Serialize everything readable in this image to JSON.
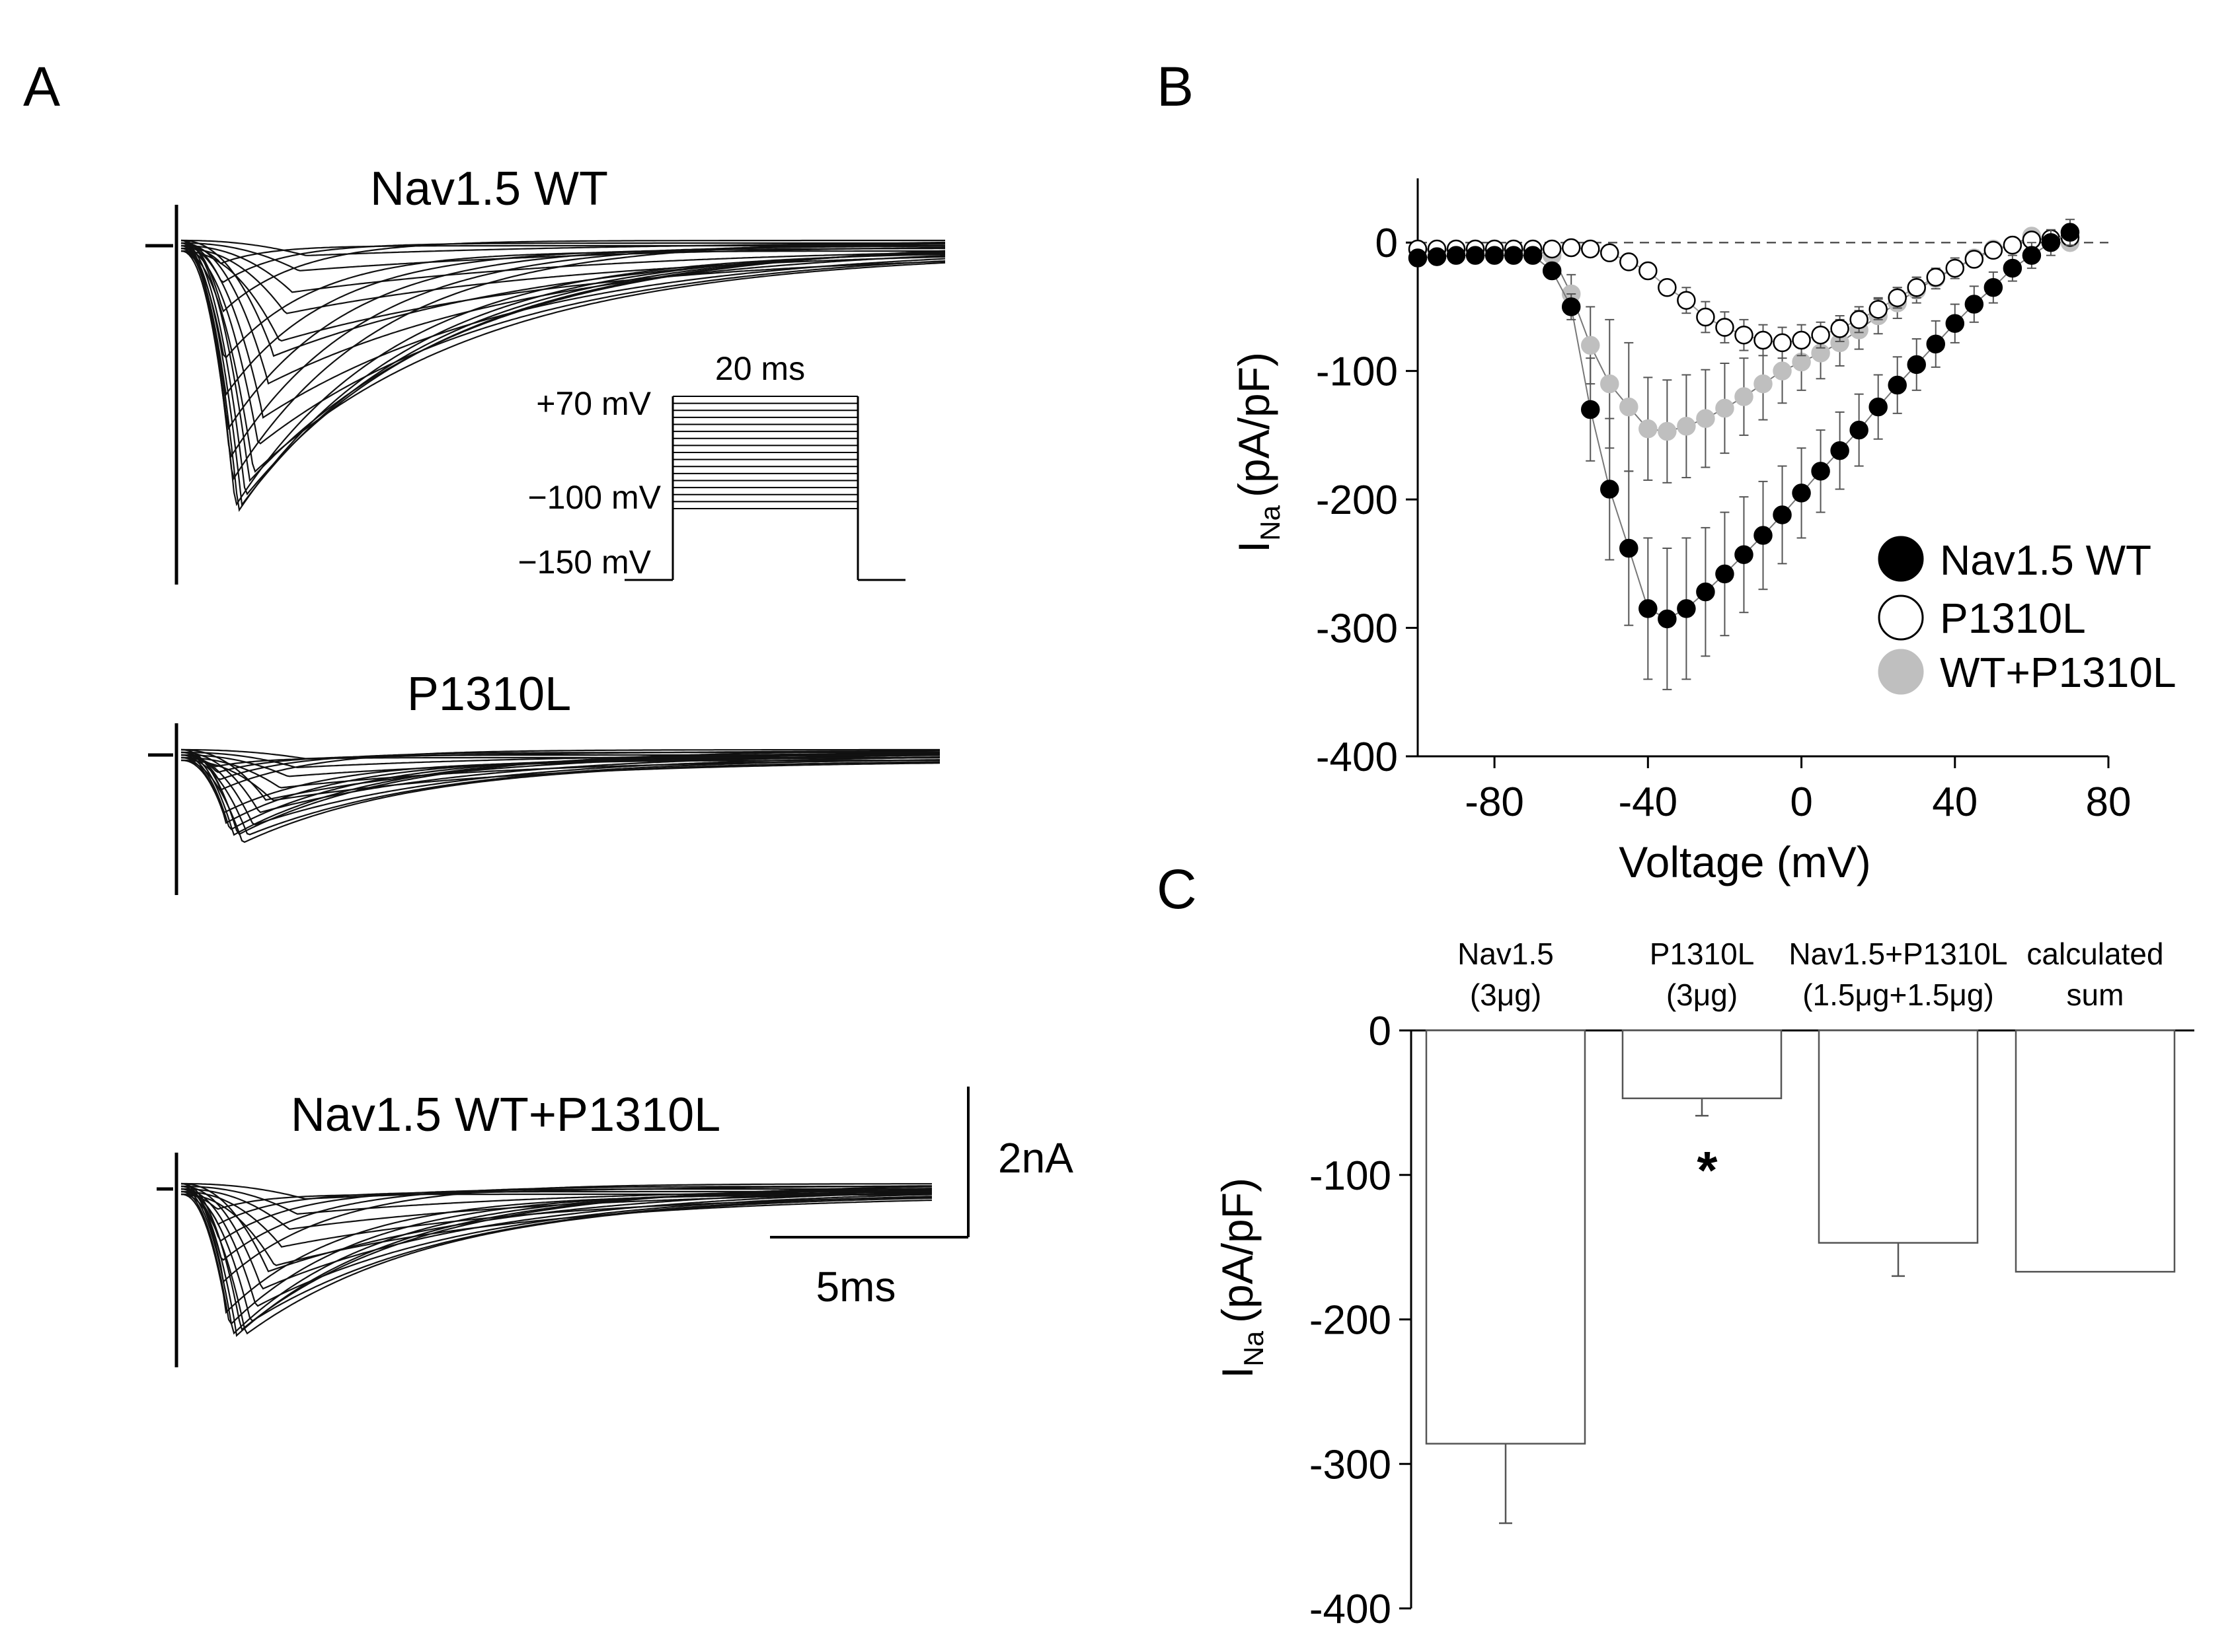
{
  "panel_labels": {
    "a": "A",
    "b": "B",
    "c": "C"
  },
  "panel_a": {
    "traces": [
      {
        "id": "wt",
        "title": "Nav1.5 WT",
        "peaks_nA": [
          0.1,
          0.2,
          0.35,
          0.5,
          0.7,
          0.9,
          1.1,
          1.35,
          1.55,
          1.75,
          1.9,
          2.0,
          2.05,
          2.08,
          2.02,
          1.9,
          1.7,
          1.45,
          1.15,
          0.85,
          0.55,
          0.3,
          0.12
        ]
      },
      {
        "id": "p1310l",
        "title": "P1310L",
        "peaks_nA": [
          0.05,
          0.1,
          0.15,
          0.22,
          0.3,
          0.38,
          0.46,
          0.54,
          0.6,
          0.64,
          0.66,
          0.64,
          0.58,
          0.5,
          0.4,
          0.3,
          0.2,
          0.12,
          0.05
        ]
      },
      {
        "id": "wtp",
        "title": "Nav1.5 WT+P1310L",
        "peaks_nA": [
          0.1,
          0.2,
          0.3,
          0.42,
          0.55,
          0.68,
          0.8,
          0.92,
          1.02,
          1.1,
          1.15,
          1.17,
          1.14,
          1.05,
          0.92,
          0.76,
          0.58,
          0.4,
          0.24,
          0.1
        ]
      }
    ],
    "protocol": {
      "duration_label": "20 ms",
      "top_label": "+70 mV",
      "mid_label": "−100 mV",
      "bottom_label": "−150 mV",
      "step_count": 17
    },
    "scale_bar": {
      "current_label": "2nA",
      "time_label": "5ms"
    }
  },
  "chart_data": [
    {
      "type": "scatter",
      "panel": "B",
      "xlabel": "Voltage (mV)",
      "ylabel_main": "I",
      "ylabel_sub": "Na",
      "ylabel_unit": "(pA/pF)",
      "xlim": [
        -100,
        80
      ],
      "ylim": [
        -400,
        50
      ],
      "xticks": [
        -80,
        -40,
        0,
        40,
        80
      ],
      "yticks": [
        0,
        -100,
        -200,
        -300,
        -400
      ],
      "x": [
        -100,
        -95,
        -90,
        -85,
        -80,
        -75,
        -70,
        -65,
        -60,
        -55,
        -50,
        -45,
        -40,
        -35,
        -30,
        -25,
        -20,
        -15,
        -10,
        -5,
        0,
        5,
        10,
        15,
        20,
        25,
        30,
        35,
        40,
        45,
        50,
        55,
        60,
        65,
        70
      ],
      "series": [
        {
          "name": "Nav1.5 WT",
          "color": "#000000",
          "values": [
            -12,
            -11,
            -10,
            -10,
            -10,
            -10,
            -10,
            -22,
            -50,
            -130,
            -192,
            -238,
            -285,
            -293,
            -285,
            -272,
            -258,
            -243,
            -228,
            -212,
            -195,
            -178,
            -162,
            -146,
            -128,
            -111,
            -95,
            -79,
            -63,
            -48,
            -35,
            -20,
            -10,
            0,
            8
          ],
          "errors": [
            0,
            0,
            0,
            0,
            0,
            0,
            0,
            0,
            10,
            40,
            55,
            60,
            55,
            55,
            55,
            50,
            48,
            45,
            42,
            38,
            35,
            32,
            30,
            28,
            25,
            22,
            20,
            18,
            15,
            14,
            12,
            10,
            10,
            10,
            10
          ]
        },
        {
          "name": "P1310L",
          "color": "#ffffff",
          "values": [
            -5,
            -5,
            -5,
            -5,
            -5,
            -5,
            -5,
            -5,
            -4,
            -5,
            -8,
            -15,
            -22,
            -35,
            -45,
            -58,
            -66,
            -72,
            -76,
            -78,
            -76,
            -72,
            -67,
            -60,
            -52,
            -43,
            -35,
            -27,
            -20,
            -13,
            -6,
            -2,
            2,
            3,
            4
          ],
          "errors": [
            0,
            0,
            0,
            0,
            0,
            0,
            0,
            0,
            0,
            0,
            0,
            0,
            0,
            0,
            10,
            12,
            12,
            12,
            12,
            12,
            12,
            10,
            10,
            10,
            8,
            8,
            8,
            6,
            6,
            6,
            5,
            5,
            5,
            5,
            5
          ]
        },
        {
          "name": "WT+P1310L",
          "color": "#bfbfbf",
          "values": [
            -6,
            -6,
            -6,
            -6,
            -6,
            -6,
            -6,
            -10,
            -40,
            -80,
            -110,
            -128,
            -145,
            -147,
            -143,
            -137,
            -129,
            -120,
            -110,
            -100,
            -93,
            -86,
            -78,
            -68,
            -57,
            -47,
            -37,
            -28,
            -20,
            -12,
            -5,
            -2,
            5,
            0,
            0
          ],
          "errors": [
            0,
            0,
            0,
            0,
            0,
            0,
            0,
            0,
            15,
            30,
            50,
            50,
            40,
            40,
            40,
            38,
            35,
            30,
            28,
            25,
            22,
            20,
            18,
            15,
            14,
            12,
            10,
            8,
            8,
            6,
            5,
            5,
            5,
            5,
            5
          ]
        }
      ]
    },
    {
      "type": "bar",
      "panel": "C",
      "ylabel_main": "I",
      "ylabel_sub": "Na",
      "ylabel_unit": "(pA/pF)",
      "ylim": [
        -400,
        0
      ],
      "yticks": [
        0,
        -100,
        -200,
        -300,
        -400
      ],
      "categories": [
        {
          "line1": "Nav1.5",
          "line2": "(3μg)"
        },
        {
          "line1": "P1310L",
          "line2": "(3μg)"
        },
        {
          "line1": "Nav1.5+P1310L",
          "line2": "(1.5μg+1.5μg)"
        },
        {
          "line1": "calculated",
          "line2": "sum"
        }
      ],
      "values": [
        -286,
        -47,
        -147,
        -167
      ],
      "errors": [
        55,
        12,
        23,
        0
      ],
      "significance": [
        "",
        "*",
        "",
        ""
      ]
    }
  ]
}
